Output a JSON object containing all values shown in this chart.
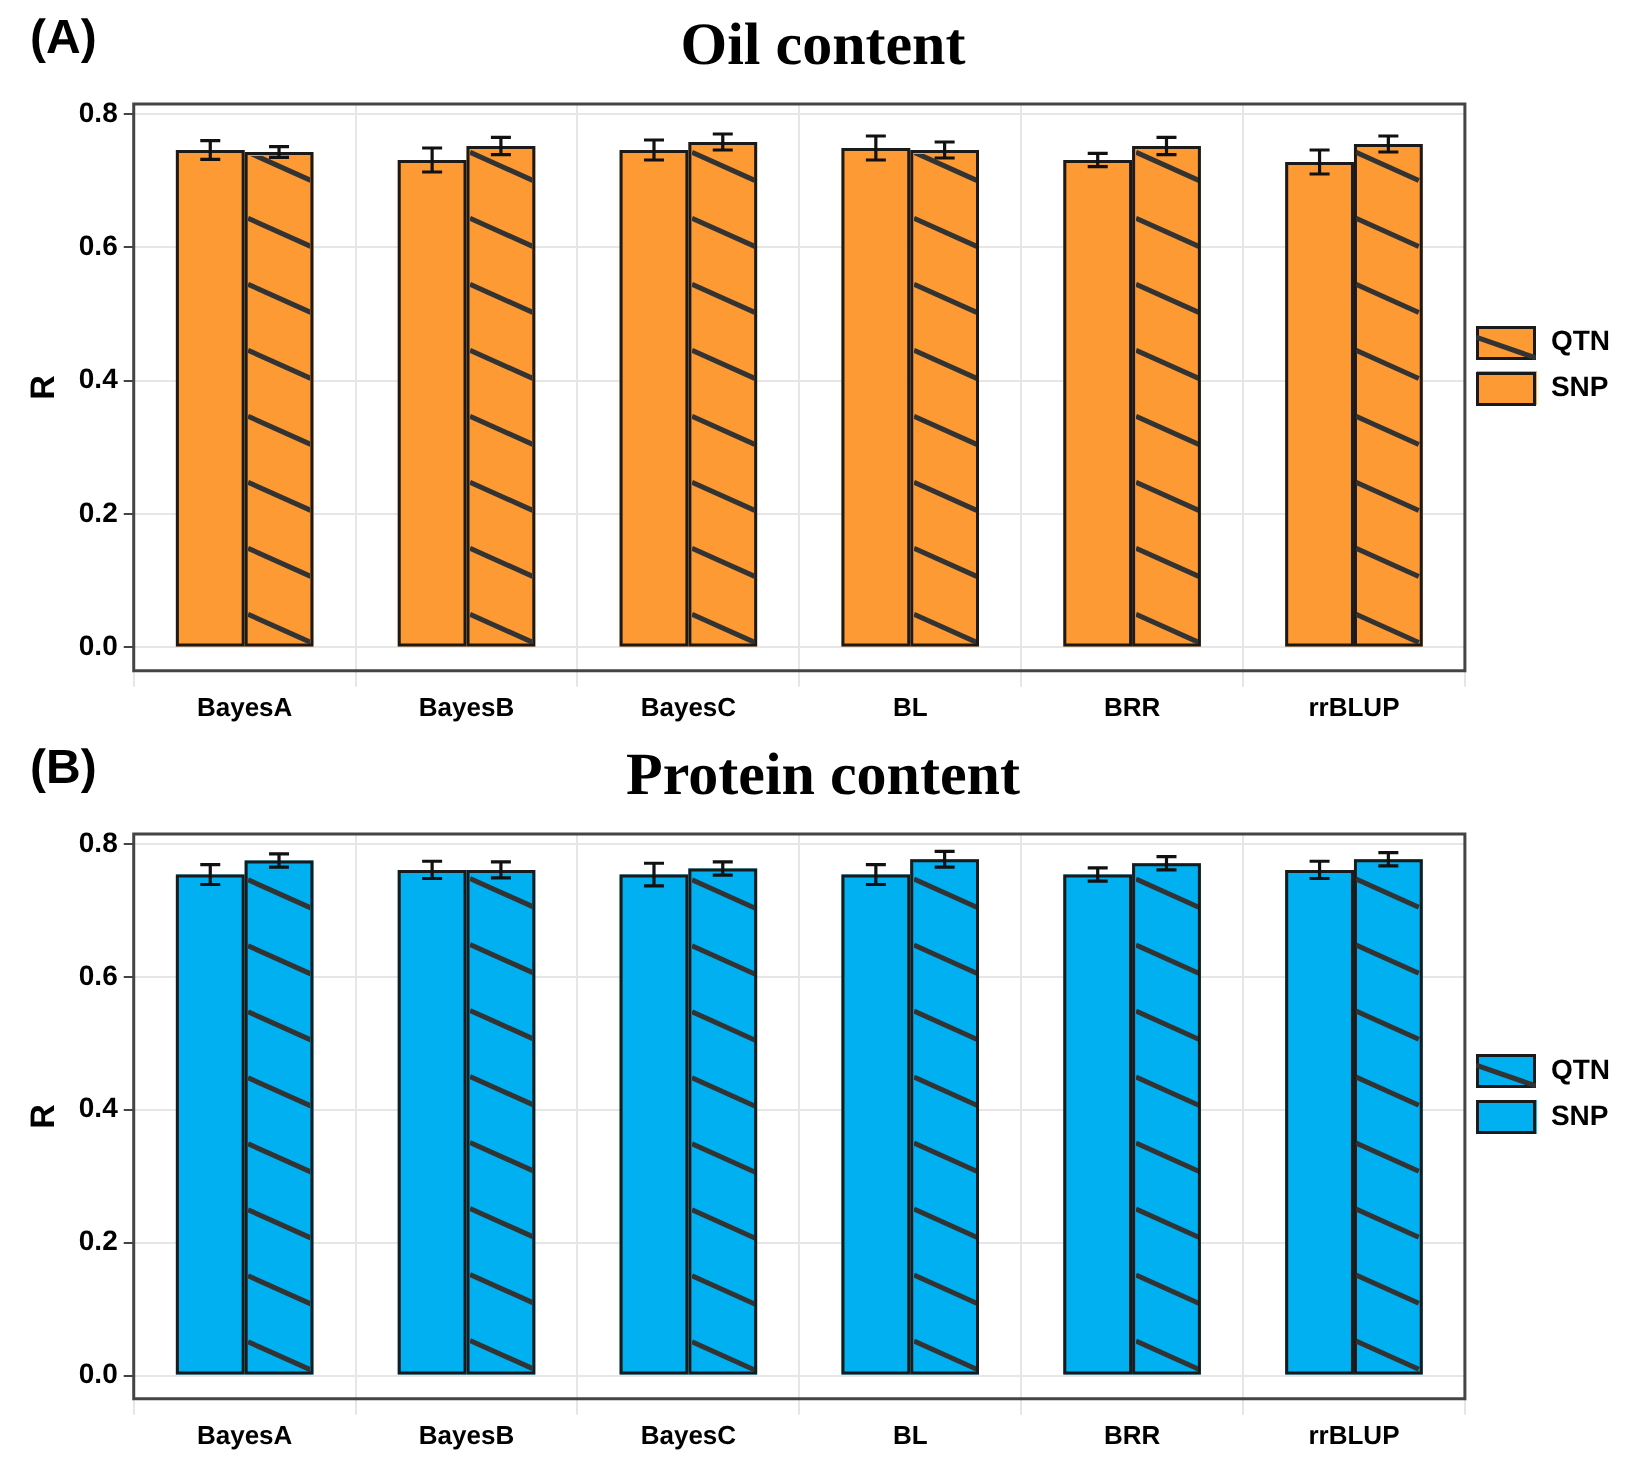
{
  "chart_data": [
    {
      "type": "bar",
      "title": "Oil content",
      "ylabel": "R",
      "annotations": [
        "(A)"
      ],
      "categories": [
        "BayesA",
        "BayesB",
        "BayesC",
        "BL",
        "BRR",
        "rrBLUP"
      ],
      "series": [
        {
          "name": "SNP",
          "color": "#fd9a33",
          "values": [
            0.746,
            0.731,
            0.746,
            0.749,
            0.731,
            0.728
          ],
          "errors": [
            0.014,
            0.018,
            0.015,
            0.018,
            0.01,
            0.018
          ]
        },
        {
          "name": "QTN",
          "color": "#fd9a33",
          "values": [
            0.743,
            0.752,
            0.758,
            0.746,
            0.752,
            0.755
          ],
          "errors": [
            0.008,
            0.013,
            0.012,
            0.012,
            0.013,
            0.012
          ]
        }
      ],
      "ylim": [
        -0.035,
        0.815
      ],
      "yticks": [
        {
          "value": 0,
          "label": "0.0"
        },
        0.2,
        0.4,
        0.6,
        0.8
      ],
      "grid": true,
      "legend": "right"
    },
    {
      "type": "bar",
      "title": "Protein content",
      "ylabel": "R",
      "annotations": [
        "(B)"
      ],
      "categories": [
        "BayesA",
        "BayesB",
        "BayesC",
        "BL",
        "BRR",
        "rrBLUP"
      ],
      "series": [
        {
          "name": "SNP",
          "color": "#00b0f0",
          "values": [
            0.754,
            0.761,
            0.754,
            0.754,
            0.754,
            0.761
          ],
          "errors": [
            0.015,
            0.013,
            0.017,
            0.015,
            0.01,
            0.013
          ]
        },
        {
          "name": "QTN",
          "color": "#00b0f0",
          "values": [
            0.775,
            0.761,
            0.763,
            0.777,
            0.771,
            0.777
          ],
          "errors": [
            0.01,
            0.012,
            0.01,
            0.012,
            0.01,
            0.01
          ]
        }
      ],
      "ylim": [
        -0.035,
        0.815
      ],
      "yticks": [
        {
          "value": 0,
          "label": "0.0"
        },
        0.2,
        0.4,
        0.6,
        0.8
      ],
      "grid": true,
      "legend": "right"
    }
  ]
}
